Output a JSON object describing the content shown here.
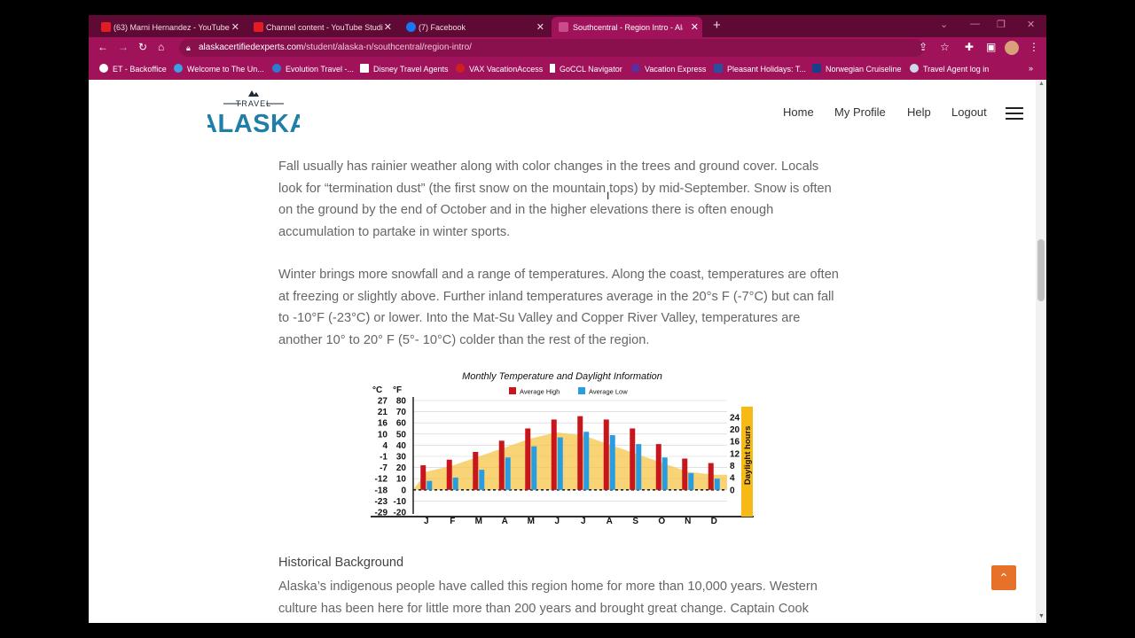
{
  "browser": {
    "tabs": [
      {
        "label": "(63) Marni Hernandez - YouTube",
        "icon": "youtube-icon",
        "color": "#e31b23"
      },
      {
        "label": "Channel content - YouTube Studi",
        "icon": "youtube-studio-icon",
        "color": "#e31b23"
      },
      {
        "label": "(7) Facebook",
        "icon": "facebook-icon",
        "color": "#1877f2"
      },
      {
        "label": "Southcentral - Region Intro - Ala",
        "icon": "site-icon",
        "color": "#a0135a"
      }
    ],
    "url_host": "alaskacertifiedexperts.com",
    "url_path": "/student/alaska-n/southcentral/region-intro/",
    "bookmarks": [
      {
        "label": "ET - Backoffice",
        "color": "#ffffff"
      },
      {
        "label": "Welcome to The Un...",
        "color": "#3aa0e8"
      },
      {
        "label": "Evolution Travel -...",
        "color": "#2a7bd4"
      },
      {
        "label": "Disney Travel Agents",
        "color": "#ffffff"
      },
      {
        "label": "VAX VacationAccess",
        "color": "#d0201b"
      },
      {
        "label": "GoCCL Navigator",
        "color": "#ffffff"
      },
      {
        "label": "Vacation Express",
        "color": "#5a2ea0"
      },
      {
        "label": "Pleasant Holidays: T...",
        "color": "#2a4fa0"
      },
      {
        "label": "Norwegian Cruiseline",
        "color": "#1a3f8a"
      },
      {
        "label": "Travel Agent log in",
        "color": "#cfd8e8"
      }
    ]
  },
  "site": {
    "logo_top": "TRAVEL",
    "logo_main": "ALASKA",
    "nav": [
      "Home",
      "My Profile",
      "Help",
      "Logout"
    ]
  },
  "content": {
    "p1": "Fall usually has rainier weather along with color changes in the trees and ground cover. Locals look for “termination dust” (the first snow on the mountain tops) by mid-September. Snow is often on the ground by the end of October and in the higher elevations there is often enough accumulation to partake in winter sports.",
    "p2": "Winter brings more snowfall and a range of temperatures. Along the coast, temperatures are often at freezing or slightly above. Further inland temperatures average in the 20°s F (-7°C) but can fall to -10°F (-23°C) or lower. Into the Mat-Su Valley and Copper River Valley, temperatures are another 10° to 20° F (5°- 10°C) colder than the rest of the region.",
    "h_history": "Historical Background",
    "p3": "Alaska’s indigenous people have called this region home for more than 10,000 years. Western culture has been here for little more than 200 years and brought great change. Captain Cook"
  },
  "chart_data": {
    "type": "bar",
    "title": "Monthly Temperature and Daylight Information",
    "categories": [
      "J",
      "F",
      "M",
      "A",
      "M",
      "J",
      "J",
      "A",
      "S",
      "O",
      "N",
      "D"
    ],
    "series": [
      {
        "name": "Average High",
        "color": "#c8161d",
        "values": [
          22,
          27,
          34,
          44,
          55,
          63,
          66,
          63,
          55,
          41,
          28,
          24
        ]
      },
      {
        "name": "Average Low",
        "color": "#2a9de0",
        "values": [
          8,
          11,
          18,
          29,
          39,
          47,
          52,
          49,
          41,
          29,
          15,
          10
        ]
      }
    ],
    "daylight_hours": [
      6,
      8,
      11,
      14,
      17,
      19,
      18,
      15,
      12,
      9,
      6,
      5
    ],
    "daylight_label": "Daylight hours",
    "left_axis_c_label": "°C",
    "left_axis_f_label": "°F",
    "yticks_c": [
      "27",
      "21",
      "16",
      "10",
      "4",
      "-1",
      "-7",
      "-12",
      "-18",
      "-23",
      "-29"
    ],
    "yticks_f": [
      "80",
      "70",
      "60",
      "50",
      "40",
      "30",
      "20",
      "10",
      "0",
      "-10",
      "-20"
    ],
    "yticks_daylight": [
      "24",
      "20",
      "16",
      "12",
      "8",
      "4",
      "0"
    ],
    "ylim_f": [
      -20,
      80
    ],
    "daylight_ylim": [
      0,
      24
    ]
  }
}
